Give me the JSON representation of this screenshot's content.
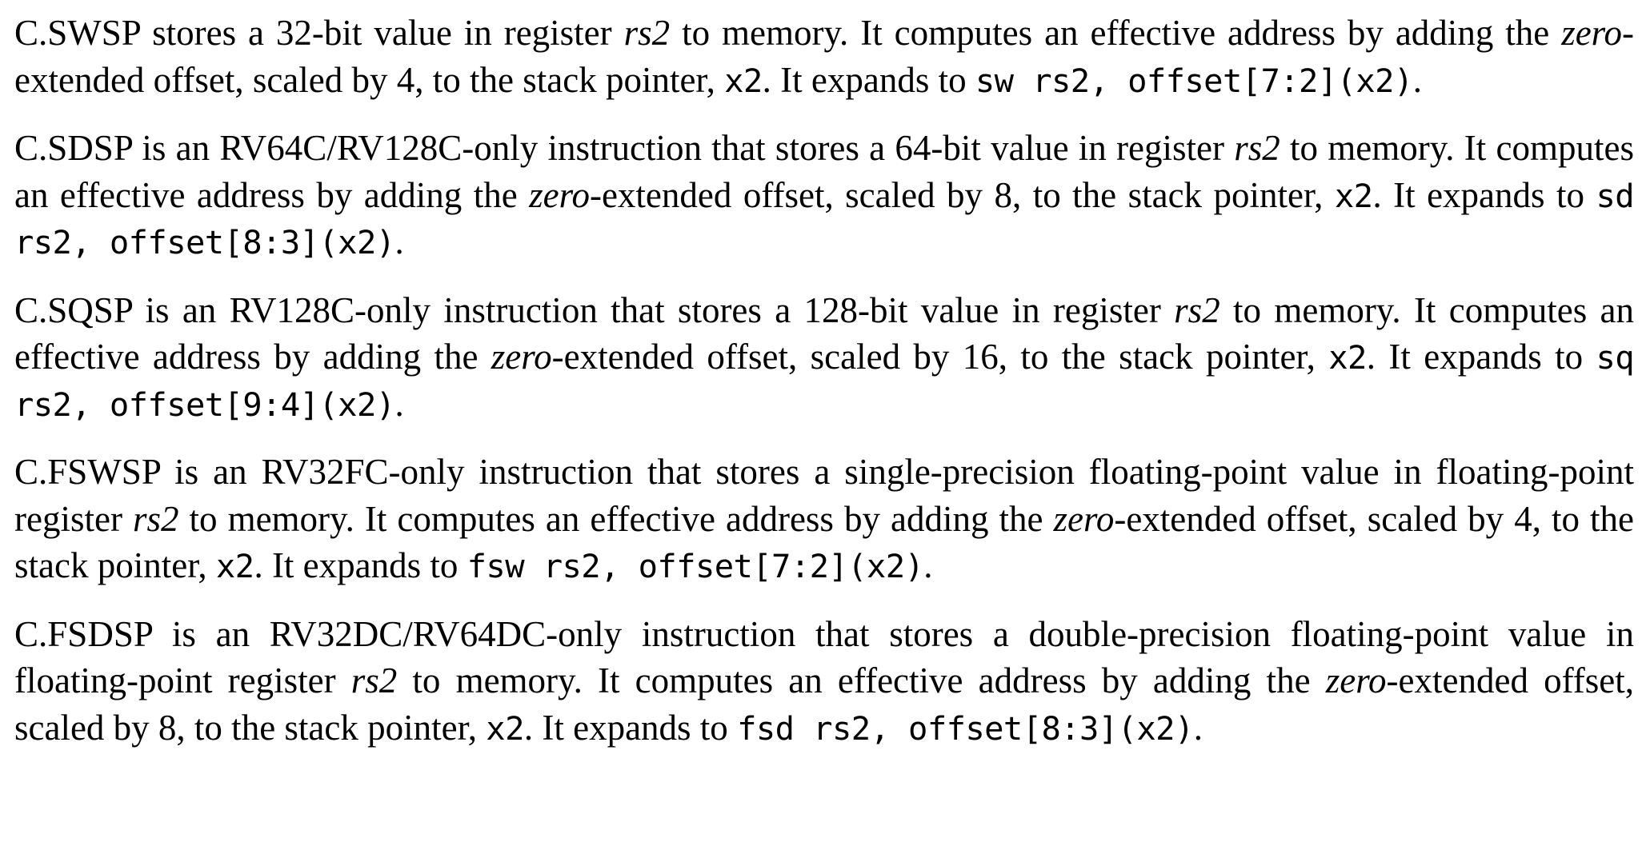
{
  "page": {
    "background_color": "#ffffff",
    "text_color": "#000000"
  },
  "document": {
    "description": "Specification text describing stack-pointer-based compressed store instructions",
    "paragraphs": [
      {
        "instruction": "C.SWSP",
        "segments": [
          {
            "text": "C.SWSP stores a 32-bit value in register ",
            "style": "normal"
          },
          {
            "text": "rs2",
            "style": "italic"
          },
          {
            "text": " to memory.  It computes an effective address by adding the ",
            "style": "normal"
          },
          {
            "text": "zero",
            "style": "italic"
          },
          {
            "text": "-extended offset, scaled by 4, to the stack pointer, ",
            "style": "normal"
          },
          {
            "text": "x2",
            "style": "mono"
          },
          {
            "text": ".  It expands to ",
            "style": "normal"
          },
          {
            "text": "sw rs2, offset[7:2](x2)",
            "style": "mono"
          },
          {
            "text": ".",
            "style": "normal"
          }
        ]
      },
      {
        "instruction": "C.SDSP",
        "segments": [
          {
            "text": "C.SDSP is an RV64C/RV128C-only instruction that stores a 64-bit value in register ",
            "style": "normal"
          },
          {
            "text": "rs2",
            "style": "italic"
          },
          {
            "text": " to memory. It computes an effective address by adding the ",
            "style": "normal"
          },
          {
            "text": "zero",
            "style": "italic"
          },
          {
            "text": "-extended offset, scaled by 8, to the stack pointer, ",
            "style": "normal"
          },
          {
            "text": "x2",
            "style": "mono"
          },
          {
            "text": ".  It expands to ",
            "style": "normal"
          },
          {
            "text": "sd rs2, offset[8:3](x2)",
            "style": "mono"
          },
          {
            "text": ".",
            "style": "normal"
          }
        ]
      },
      {
        "instruction": "C.SQSP",
        "segments": [
          {
            "text": "C.SQSP is an RV128C-only instruction that stores a 128-bit value in register ",
            "style": "normal"
          },
          {
            "text": "rs2",
            "style": "italic"
          },
          {
            "text": " to memory.  It computes an effective address by adding the ",
            "style": "normal"
          },
          {
            "text": "zero",
            "style": "italic"
          },
          {
            "text": "-extended offset, scaled by 16, to the stack pointer, ",
            "style": "normal"
          },
          {
            "text": "x2",
            "style": "mono"
          },
          {
            "text": ".  It expands to ",
            "style": "normal"
          },
          {
            "text": "sq rs2, offset[9:4](x2)",
            "style": "mono"
          },
          {
            "text": ".",
            "style": "normal"
          }
        ]
      },
      {
        "instruction": "C.FSWSP",
        "segments": [
          {
            "text": "C.FSWSP is an RV32FC-only instruction that stores a single-precision floating-point value in floating-point register ",
            "style": "normal"
          },
          {
            "text": "rs2",
            "style": "italic"
          },
          {
            "text": " to memory.  It computes an effective address by adding the ",
            "style": "normal"
          },
          {
            "text": "zero",
            "style": "italic"
          },
          {
            "text": "-extended offset, scaled by 4, to the stack pointer, ",
            "style": "normal"
          },
          {
            "text": "x2",
            "style": "mono"
          },
          {
            "text": ".  It expands to ",
            "style": "normal"
          },
          {
            "text": "fsw rs2, offset[7:2](x2)",
            "style": "mono"
          },
          {
            "text": ".",
            "style": "normal"
          }
        ]
      },
      {
        "instruction": "C.FSDSP",
        "segments": [
          {
            "text": "C.FSDSP is an RV32DC/RV64DC-only instruction that stores a double-precision floating-point value in floating-point register ",
            "style": "normal"
          },
          {
            "text": "rs2",
            "style": "italic"
          },
          {
            "text": " to memory.  It computes an effective address by adding the ",
            "style": "normal"
          },
          {
            "text": "zero",
            "style": "italic"
          },
          {
            "text": "-extended offset, scaled by 8, to the stack pointer, ",
            "style": "normal"
          },
          {
            "text": "x2",
            "style": "mono"
          },
          {
            "text": ".  It expands to ",
            "style": "normal"
          },
          {
            "text": "fsd rs2, offset[8:3](x2)",
            "style": "mono"
          },
          {
            "text": ".",
            "style": "normal"
          }
        ]
      }
    ]
  }
}
